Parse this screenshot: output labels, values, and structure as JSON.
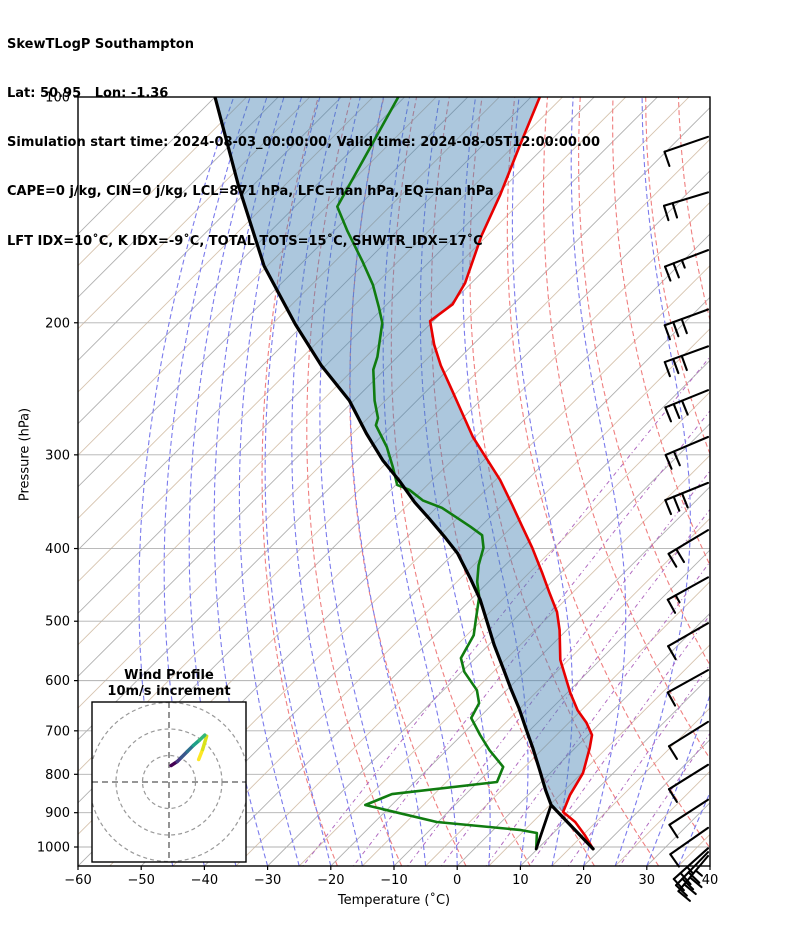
{
  "header": {
    "line1": "SkewTLogP Southampton",
    "line2": "Lat: 50.95   Lon: -1.36",
    "line3": "Simulation start time: 2024-08-03_00:00:00, Valid time: 2024-08-05T12:00:00.00",
    "line4": "CAPE=0 j/kg, CIN=0 j/kg, LCL=871 hPa, LFC=nan hPa, EQ=nan hPa",
    "line5": "LFT IDX=10˚C, K IDX=-9˚C, TOTAL TOTS=15˚C, SHWTR_IDX=17˚C"
  },
  "axes": {
    "x_label": "Temperature (˚C)",
    "y_label": "Pressure (hPa)",
    "x_ticks": [
      {
        "v": -60,
        "label": "−60"
      },
      {
        "v": -50,
        "label": "−50"
      },
      {
        "v": -40,
        "label": "−40"
      },
      {
        "v": -30,
        "label": "−30"
      },
      {
        "v": -20,
        "label": "−20"
      },
      {
        "v": -10,
        "label": "−10"
      },
      {
        "v": 0,
        "label": "0"
      },
      {
        "v": 10,
        "label": "10"
      },
      {
        "v": 20,
        "label": "20"
      },
      {
        "v": 30,
        "label": "30"
      },
      {
        "v": 40,
        "label": "40"
      }
    ],
    "y_ticks": [
      {
        "v": 100,
        "label": "100"
      },
      {
        "v": 200,
        "label": "200"
      },
      {
        "v": 300,
        "label": "300"
      },
      {
        "v": 400,
        "label": "400"
      },
      {
        "v": 500,
        "label": "500"
      },
      {
        "v": 600,
        "label": "600"
      },
      {
        "v": 700,
        "label": "700"
      },
      {
        "v": 800,
        "label": "800"
      },
      {
        "v": 900,
        "label": "900"
      },
      {
        "v": 1000,
        "label": "1000"
      }
    ]
  },
  "inset": {
    "title_line1": "Wind Profile",
    "title_line2": "10m/s increment",
    "rings_ms": [
      10,
      20,
      30
    ]
  },
  "chart_data": {
    "type": "skewt_logp",
    "pressure_range_hpa": [
      100,
      1060
    ],
    "temperature_range_c": [
      -60,
      40
    ],
    "skew_deg": 45,
    "grid": {
      "isotherm_step_c": 5,
      "dry_adiabat_theta_k": {
        "from": 250,
        "to": 460,
        "step": 10
      },
      "moist_adiabat_start_c": {
        "from": -45,
        "to": 35,
        "step": 5
      },
      "mixing_ratio_g_kg": [
        0.5,
        1,
        2,
        3,
        5,
        8,
        12,
        20
      ]
    },
    "colors": {
      "temperature": "#e80000",
      "dewpoint": "#107c10",
      "parcel": "#000000",
      "shade": "rgba(70,130,180,0.45)",
      "isotherm": "#b0b0b0",
      "isotherm_minor": "#d6c3ae",
      "dry_adiabat": "#ef7f7f",
      "moist_adiabat": "#7b7bec",
      "mixing_ratio": "#b06ac0",
      "grid_gray": "#b0b0b0"
    },
    "temperature_profile": [
      [
        100,
        -108.6
      ],
      [
        116,
        -104.1
      ],
      [
        135,
        -99.4
      ],
      [
        153,
        -95.9
      ],
      [
        177,
        -91.0
      ],
      [
        189,
        -89.6
      ],
      [
        199,
        -90.5
      ],
      [
        214,
        -86.1
      ],
      [
        228,
        -81.8
      ],
      [
        246,
        -76.1
      ],
      [
        261,
        -71.7
      ],
      [
        284,
        -65.4
      ],
      [
        305,
        -59.4
      ],
      [
        324,
        -54.3
      ],
      [
        350,
        -48.4
      ],
      [
        374,
        -43.4
      ],
      [
        399,
        -38.5
      ],
      [
        430,
        -33.1
      ],
      [
        459,
        -28.5
      ],
      [
        486,
        -24.4
      ],
      [
        514,
        -21.1
      ],
      [
        563,
        -16.3
      ],
      [
        623,
        -9.5
      ],
      [
        657,
        -5.6
      ],
      [
        683,
        -2.2
      ],
      [
        709,
        0.6
      ],
      [
        738,
        2.3
      ],
      [
        797,
        5.2
      ],
      [
        852,
        6.6
      ],
      [
        898,
        8.2
      ],
      [
        926,
        11.7
      ],
      [
        964,
        15.3
      ],
      [
        1006,
        18.8
      ]
    ],
    "dewpoint_profile": [
      [
        100,
        -131.0
      ],
      [
        140,
        -123.3
      ],
      [
        151,
        -117.8
      ],
      [
        166,
        -110.5
      ],
      [
        178,
        -105.3
      ],
      [
        191,
        -100.7
      ],
      [
        200,
        -97.8
      ],
      [
        222,
        -93.2
      ],
      [
        231,
        -91.8
      ],
      [
        254,
        -86.7
      ],
      [
        268,
        -83.4
      ],
      [
        274,
        -82.6
      ],
      [
        293,
        -77.4
      ],
      [
        311,
        -73.4
      ],
      [
        329,
        -69.8
      ],
      [
        334,
        -67.1
      ],
      [
        345,
        -63.3
      ],
      [
        353,
        -59.1
      ],
      [
        364,
        -55.1
      ],
      [
        374,
        -51.6
      ],
      [
        384,
        -48.4
      ],
      [
        399,
        -46.2
      ],
      [
        421,
        -44.2
      ],
      [
        443,
        -41.8
      ],
      [
        464,
        -39.1
      ],
      [
        498,
        -36.0
      ],
      [
        522,
        -33.9
      ],
      [
        560,
        -32.3
      ],
      [
        584,
        -29.6
      ],
      [
        618,
        -24.7
      ],
      [
        643,
        -22.3
      ],
      [
        673,
        -21.2
      ],
      [
        709,
        -17.1
      ],
      [
        743,
        -13.2
      ],
      [
        782,
        -8.4
      ],
      [
        819,
        -7.0
      ],
      [
        850,
        -21.7
      ],
      [
        879,
        -24.2
      ],
      [
        926,
        -10.2
      ],
      [
        949,
        4.2
      ],
      [
        958,
        7.4
      ],
      [
        1006,
        9.8
      ]
    ],
    "parcel_profile": [
      [
        100,
        -160.0
      ],
      [
        131,
        -142.4
      ],
      [
        168,
        -125.5
      ],
      [
        201,
        -111.3
      ],
      [
        228,
        -100.7
      ],
      [
        254,
        -90.7
      ],
      [
        281,
        -82.8
      ],
      [
        305,
        -76.0
      ],
      [
        326,
        -69.8
      ],
      [
        347,
        -64.3
      ],
      [
        366,
        -59.1
      ],
      [
        387,
        -53.8
      ],
      [
        406,
        -49.4
      ],
      [
        438,
        -43.5
      ],
      [
        468,
        -38.5
      ],
      [
        501,
        -33.9
      ],
      [
        538,
        -29.1
      ],
      [
        577,
        -24.1
      ],
      [
        614,
        -19.7
      ],
      [
        653,
        -15.2
      ],
      [
        694,
        -11.0
      ],
      [
        738,
        -6.7
      ],
      [
        790,
        -2.1
      ],
      [
        840,
        2.0
      ],
      [
        879,
        5.2
      ],
      [
        1006,
        18.8
      ]
    ],
    "lcl_connector": [
      [
        1006,
        9.8
      ],
      [
        879,
        5.2
      ]
    ],
    "lcl_hpa": 871,
    "shade_between": "parcel_and_temperature",
    "wind_barbs": [
      {
        "p": 113,
        "full": 1,
        "half": 0,
        "angle": 19
      },
      {
        "p": 134,
        "full": 2,
        "half": 0,
        "angle": 17
      },
      {
        "p": 160,
        "full": 2,
        "half": 1,
        "angle": 21
      },
      {
        "p": 192,
        "full": 3,
        "half": 0,
        "angle": 20
      },
      {
        "p": 215,
        "full": 3,
        "half": 0,
        "angle": 20
      },
      {
        "p": 246,
        "full": 3,
        "half": 0,
        "angle": 22
      },
      {
        "p": 284,
        "full": 2,
        "half": 0,
        "angle": 23
      },
      {
        "p": 327,
        "full": 3,
        "half": 0,
        "angle": 22
      },
      {
        "p": 378,
        "full": 2,
        "half": 0,
        "angle": 31
      },
      {
        "p": 437,
        "full": 1,
        "half": 1,
        "angle": 29
      },
      {
        "p": 503,
        "full": 1,
        "half": 0,
        "angle": 30
      },
      {
        "p": 581,
        "full": 1,
        "half": 0,
        "angle": 29
      },
      {
        "p": 681,
        "full": 1,
        "half": 0,
        "angle": 32
      },
      {
        "p": 777,
        "full": 1,
        "half": 0,
        "angle": 32
      },
      {
        "p": 865,
        "full": 1,
        "half": 0,
        "angle": 33
      },
      {
        "p": 943,
        "full": 1,
        "half": 0,
        "angle": 35
      },
      {
        "p": 1004,
        "full": 2,
        "half": 1,
        "angle": 42
      },
      {
        "p": 1016,
        "full": 3,
        "half": 0,
        "angle": 46
      },
      {
        "p": 1028,
        "full": 3,
        "half": 1,
        "angle": 50
      }
    ],
    "hodograph": {
      "ring_increment_ms": 10,
      "trace_uv": [
        [
          0.8,
          6.2
        ],
        [
          3.1,
          7.7
        ],
        [
          4.6,
          9.2
        ],
        [
          6.9,
          11.5
        ],
        [
          9.2,
          13.8
        ],
        [
          11.5,
          15.8
        ],
        [
          13.5,
          17.7
        ]
      ],
      "trace_colors": [
        "#440154",
        "#453681",
        "#39568c",
        "#2d708e",
        "#1fa088",
        "#35b779",
        "#8fd744"
      ],
      "branch_uv": [
        [
          11.2,
          8.5
        ],
        [
          12.7,
          12.3
        ],
        [
          14.2,
          17.3
        ]
      ],
      "branch_colors": [
        "#fde725",
        "#d8e219"
      ]
    }
  }
}
